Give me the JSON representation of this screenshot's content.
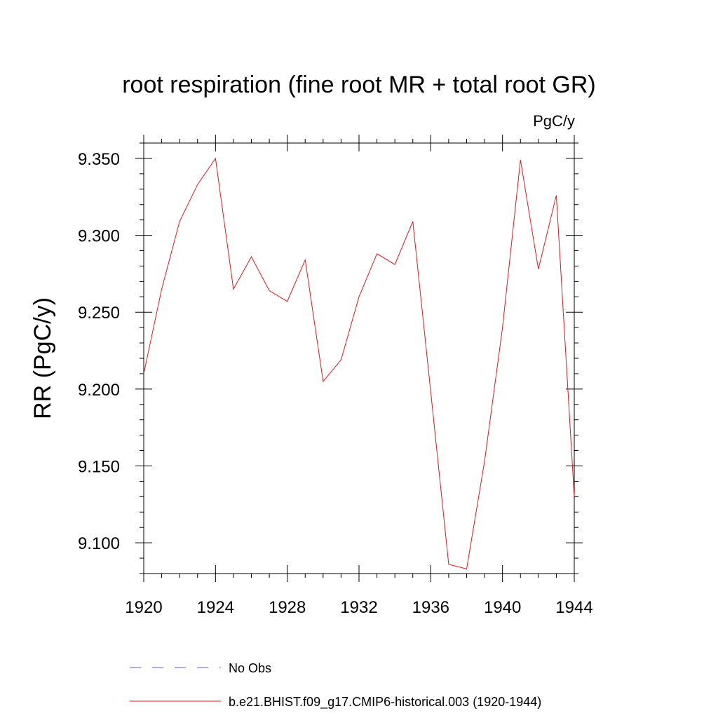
{
  "chart_data": {
    "type": "line",
    "title": "root respiration (fine root MR + total root GR)",
    "units": "PgC/y",
    "ylabel": "RR  (PgC/y)",
    "xlabel": "",
    "xlim": [
      1920,
      1944
    ],
    "ylim": [
      9.08,
      9.36
    ],
    "xticks": [
      1920,
      1924,
      1928,
      1932,
      1936,
      1940,
      1944
    ],
    "xtick_labels": [
      "1920",
      "1924",
      "1928",
      "1932",
      "1936",
      "1940",
      "1944"
    ],
    "yticks": [
      9.1,
      9.15,
      9.2,
      9.25,
      9.3,
      9.35
    ],
    "ytick_labels": [
      "9.100",
      "9.150",
      "9.200",
      "9.250",
      "9.300",
      "9.350"
    ],
    "grid": false,
    "legend_position": "bottom",
    "series": [
      {
        "name": "b.e21.BHIST.f09_g17.CMIP6-historical.003 (1920-1944)",
        "color": "#e8141c",
        "style": "solid",
        "x": [
          1920,
          1921,
          1922,
          1923,
          1924,
          1925,
          1926,
          1927,
          1928,
          1929,
          1930,
          1931,
          1932,
          1933,
          1934,
          1935,
          1936,
          1937,
          1938,
          1939,
          1940,
          1941,
          1942,
          1943,
          1944
        ],
        "values": [
          9.21,
          9.265,
          9.309,
          9.333,
          9.35,
          9.265,
          9.286,
          9.264,
          9.257,
          9.284,
          9.205,
          9.219,
          9.26,
          9.288,
          9.281,
          9.309,
          9.198,
          9.086,
          9.083,
          9.153,
          9.24,
          9.349,
          9.278,
          9.326,
          9.13
        ]
      },
      {
        "name": "No Obs",
        "color": "#6a5acd",
        "style": "dashed",
        "x": [],
        "values": []
      }
    ]
  }
}
